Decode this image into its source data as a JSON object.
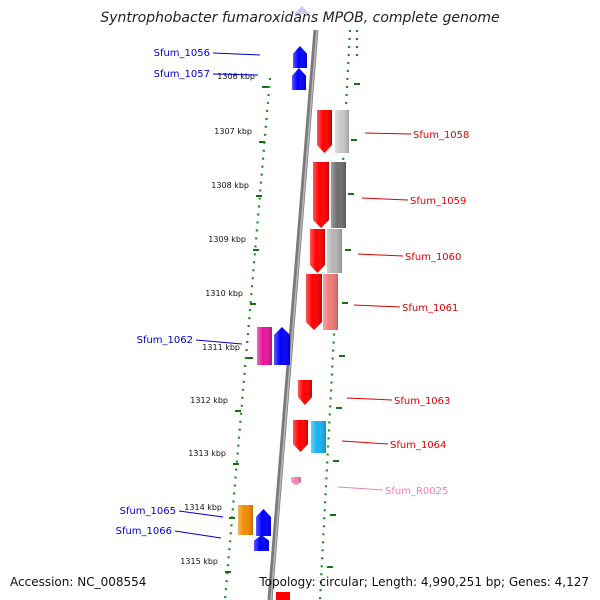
{
  "title": "Syntrophobacter fumaroxidans MPOB, complete genome",
  "accession": "Accession: NC_008554",
  "summary": "Topology: circular; Length: 4,990,251 bp; Genes: 4,127",
  "colors": {
    "backbone": "#7a7a7a",
    "dotted_track": "#1a8a1a",
    "kbp_tick": "#1a6e1a",
    "left_label": "#0000cc",
    "right_label": "#dd0000",
    "rna_label": "#f080b0"
  },
  "kbp_ticks": [
    {
      "label": "1306 kbp"
    },
    {
      "label": "1307 kbp"
    },
    {
      "label": "1308 kbp"
    },
    {
      "label": "1309 kbp"
    },
    {
      "label": "1310 kbp"
    },
    {
      "label": "1311 kbp"
    },
    {
      "label": "1312 kbp"
    },
    {
      "label": "1313 kbp"
    },
    {
      "label": "1314 kbp"
    },
    {
      "label": "1315 kbp"
    }
  ],
  "gene_labels": [
    {
      "text": "Sfum_1056",
      "side": "left",
      "color": "#0000cc"
    },
    {
      "text": "Sfum_1057",
      "side": "left",
      "color": "#0000cc"
    },
    {
      "text": "Sfum_1058",
      "side": "right",
      "color": "#dd0000"
    },
    {
      "text": "Sfum_1059",
      "side": "right",
      "color": "#dd0000"
    },
    {
      "text": "Sfum_1060",
      "side": "right",
      "color": "#dd0000"
    },
    {
      "text": "Sfum_1061",
      "side": "right",
      "color": "#dd0000"
    },
    {
      "text": "Sfum_1062",
      "side": "left",
      "color": "#0000cc"
    },
    {
      "text": "Sfum_1063",
      "side": "right",
      "color": "#dd0000"
    },
    {
      "text": "Sfum_1064",
      "side": "right",
      "color": "#dd0000"
    },
    {
      "text": "Sfum_R0025",
      "side": "right",
      "color": "#f080b0"
    },
    {
      "text": "Sfum_1065",
      "side": "left",
      "color": "#0000cc"
    },
    {
      "text": "Sfum_1066",
      "side": "left",
      "color": "#0000cc"
    }
  ],
  "genes": [
    {
      "name": "gene-1056",
      "strand": "forward",
      "color": "#0000ff"
    },
    {
      "name": "gene-1057",
      "strand": "forward",
      "color": "#0000ff"
    },
    {
      "name": "gene-1058",
      "strand": "reverse",
      "color": "#ff0000"
    },
    {
      "name": "gene-1058-cog",
      "strand": "none",
      "color": "#c8c8c8"
    },
    {
      "name": "gene-1059",
      "strand": "reverse",
      "color": "#ff0000"
    },
    {
      "name": "gene-1059-cog",
      "strand": "none",
      "color": "#6e6e6e"
    },
    {
      "name": "gene-1060",
      "strand": "reverse",
      "color": "#ff0000"
    },
    {
      "name": "gene-1060-cog",
      "strand": "none",
      "color": "#b4b4b4"
    },
    {
      "name": "gene-1061",
      "strand": "reverse",
      "color": "#ff0000"
    },
    {
      "name": "gene-1061-cog",
      "strand": "none",
      "color": "#f07878"
    },
    {
      "name": "gene-1062-cog",
      "strand": "none",
      "color": "#e6149a"
    },
    {
      "name": "gene-1062",
      "strand": "forward",
      "color": "#0000ff"
    },
    {
      "name": "gene-1063",
      "strand": "reverse",
      "color": "#ff0000"
    },
    {
      "name": "gene-1064",
      "strand": "reverse",
      "color": "#ff0000"
    },
    {
      "name": "gene-1064-cog",
      "strand": "none",
      "color": "#18b4f0"
    },
    {
      "name": "gene-R0025",
      "strand": "reverse",
      "color": "#f080b0"
    },
    {
      "name": "gene-1065-cog",
      "strand": "none",
      "color": "#f08c00"
    },
    {
      "name": "gene-1065",
      "strand": "forward",
      "color": "#0000ff"
    },
    {
      "name": "gene-1066",
      "strand": "forward",
      "color": "#0000ff"
    }
  ]
}
